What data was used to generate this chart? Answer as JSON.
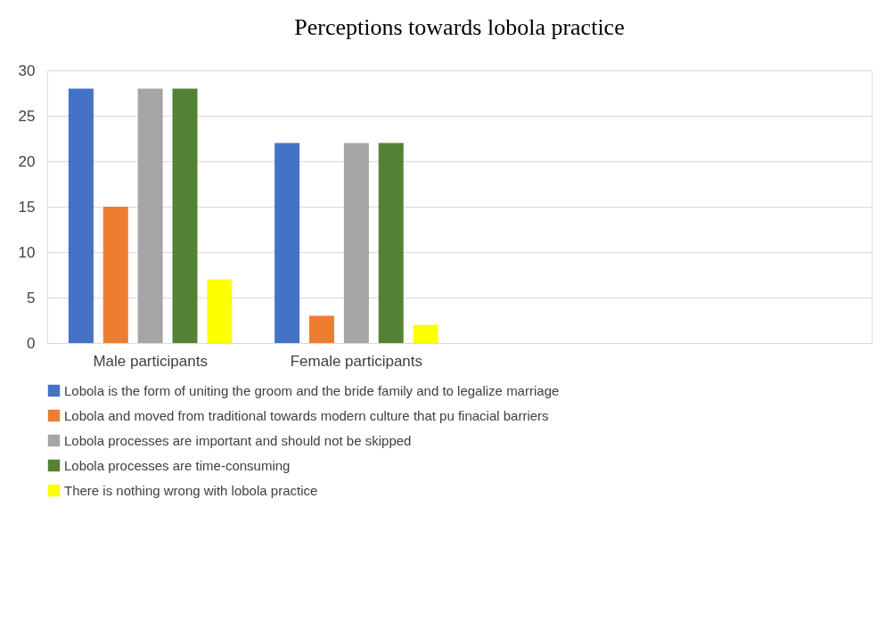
{
  "chart_data": {
    "type": "bar",
    "title": "Perceptions towards lobola practice",
    "categories": [
      "Male participants",
      "Female participants",
      null,
      null
    ],
    "series": [
      {
        "name": "Lobola is the form of uniting the groom and the bride family and to legalize marriage",
        "color": "#4472c4",
        "values": [
          28,
          22,
          null,
          null
        ]
      },
      {
        "name": "Lobola and moved from traditional towards modern culture that pu finacial barriers",
        "color": "#ed7d31",
        "values": [
          15,
          3,
          null,
          null
        ]
      },
      {
        "name": "Lobola processes are important and should not be skipped",
        "color": "#a5a5a5",
        "values": [
          28,
          22,
          null,
          null
        ]
      },
      {
        "name": "Lobola processes are time-consuming",
        "color": "#548235",
        "values": [
          28,
          22,
          null,
          null
        ]
      },
      {
        "name": "There is nothing wrong with lobola practice",
        "color": "#ffff00",
        "values": [
          7,
          2,
          null,
          null
        ]
      }
    ],
    "ylim": [
      0,
      30
    ],
    "yticks": [
      0,
      5,
      10,
      15,
      20,
      25,
      30
    ],
    "grid": "y",
    "legend": "bottom"
  }
}
